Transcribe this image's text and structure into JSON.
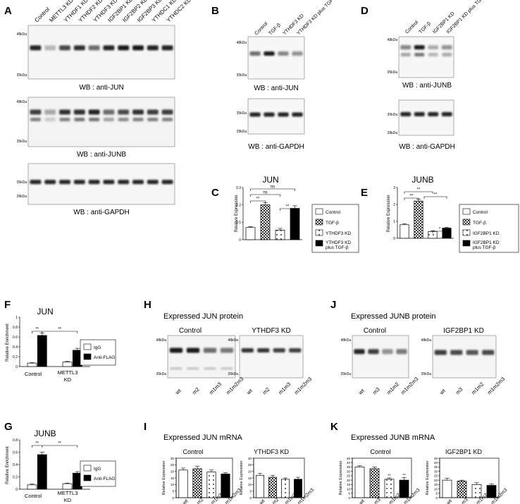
{
  "panels": {
    "A": {
      "letter": "A",
      "lanes": [
        "Control",
        "METTL3 KD",
        "YTHDF1 KD",
        "YTHDF2 KD",
        "YTHDF3 KD",
        "IGF2BP1 KD",
        "IGF2BP2 KD",
        "IGF2BP3 KD",
        "YTHDC1 KD",
        "YTHDC2 KD"
      ],
      "blots": [
        {
          "label": "WB : anti-JUN",
          "marker_top": "48kDa",
          "marker_bottom": "35kDa"
        },
        {
          "label": "WB : anti-JUNB",
          "marker_top": "48kDa",
          "marker_bottom": "35kDa"
        },
        {
          "label": "WB : anti-GAPDH",
          "marker_top": "35kDa",
          "marker_bottom": "28kDa"
        }
      ]
    },
    "B": {
      "letter": "B",
      "lanes": [
        "Control",
        "TGF-β",
        "YTHDF3 KD",
        "YTHDF3 KD plus TGF-β"
      ],
      "blots": [
        {
          "label": "WB : anti-JUN",
          "marker_top": "48kDa",
          "marker_bottom": "35kDa"
        },
        {
          "label": "WB : anti-GAPDH",
          "marker_top": "35kDa",
          "marker_bottom": "28kDa"
        }
      ]
    },
    "D": {
      "letter": "D",
      "lanes": [
        "Control",
        "TGF-β",
        "IGF2BP1 KD",
        "IGF2BP1 KD plus TGF-β"
      ],
      "blots": [
        {
          "label": "WB : anti-JUNB",
          "marker_top": "48kDa",
          "marker_bottom": "35kDa"
        },
        {
          "label": "WB : anti-GAPDH",
          "marker_top": "35kDa",
          "marker_bottom": "28kDa"
        }
      ]
    },
    "C": {
      "letter": "C",
      "chart_title": "JUN",
      "ylabel": "Relative Expression",
      "legend": [
        "Control",
        "TGF-β",
        "YTHDF3 KD",
        "YTHDF3 KD plus TGF-β"
      ],
      "sig": [
        "ns",
        "ns",
        "**",
        "**"
      ]
    },
    "E": {
      "letter": "E",
      "chart_title": "JUNB",
      "ylabel": "Relative Expression",
      "legend": [
        "Control",
        "TGF-β",
        "IGF2BP1 KD",
        "IGF2BP1 KD plus TGF-β"
      ],
      "sig": [
        "**",
        "**",
        "**",
        "*"
      ]
    },
    "F": {
      "letter": "F",
      "chart_title": "JUN",
      "ylabel": "Relative Enrichment",
      "groups": [
        "Control",
        "METTL3 KD"
      ],
      "legend": [
        "IgG",
        "Anti-FLAG"
      ],
      "sig": [
        "**",
        "**"
      ]
    },
    "G": {
      "letter": "G",
      "chart_title": "JUNB",
      "ylabel": "Relative Enrichment",
      "groups": [
        "Control",
        "METTL3 KD"
      ],
      "legend": [
        "IgG",
        "Anti-FLAG"
      ],
      "sig": [
        "**",
        "**"
      ]
    },
    "H": {
      "letter": "H",
      "heading": "Expressed JUN protein",
      "sub": [
        "Control",
        "YTHDF3 KD"
      ],
      "lanes": [
        "wt",
        "m2",
        "m1m3",
        "m1m2m3"
      ],
      "marker_top": "48kDa",
      "marker_bottom": "35kDa"
    },
    "J": {
      "letter": "J",
      "heading": "Expressed JUNB protein",
      "sub": [
        "Control",
        "IGF2BP1 KD"
      ],
      "lanes": [
        "wt",
        "m3",
        "m1m2",
        "m1m2m3"
      ],
      "marker_top": "48kDa",
      "marker_bottom": "35kDa"
    },
    "I": {
      "letter": "I",
      "heading": "Expressed JUN mRNA",
      "sub": [
        "Control",
        "YTHDF3 KD"
      ],
      "ylabel": "Relative Expression",
      "lanes": [
        "wt",
        "m2",
        "m1m3",
        "m1m2m3"
      ]
    },
    "K": {
      "letter": "K",
      "heading": "Expressed JUNB mRNA",
      "sub": [
        "Control",
        "IGF2BP1 KD"
      ],
      "ylabel": "Relative Expression",
      "lanes": [
        "wt",
        "m3",
        "m1m2",
        "m1m2m3"
      ],
      "sig": [
        "**",
        "**"
      ]
    }
  },
  "chart_data": [
    {
      "id": "C",
      "type": "bar",
      "categories": [
        "Control",
        "TGF-β",
        "YTHDF3 KD",
        "YTHDF3 KD plus TGF-β"
      ],
      "values": [
        0.07,
        0.2,
        0.055,
        0.18
      ],
      "errors": [
        0.005,
        0.012,
        0.01,
        0.015
      ],
      "ylim": [
        0,
        0.3
      ],
      "yticks": [
        0,
        0.1,
        0.2,
        0.3
      ],
      "title": "JUN",
      "ylabel": "Relative Expression"
    },
    {
      "id": "E",
      "type": "bar",
      "categories": [
        "Control",
        "TGF-β",
        "IGF2BP1 KD",
        "IGF2BP1 KD plus TGF-β"
      ],
      "values": [
        0.8,
        2.2,
        0.4,
        0.6
      ],
      "errors": [
        0.05,
        0.12,
        0.05,
        0.05
      ],
      "ylim": [
        0,
        3
      ],
      "yticks": [
        0,
        1,
        2,
        3
      ],
      "title": "JUNB",
      "ylabel": "Relative Expression"
    },
    {
      "id": "F",
      "type": "bar",
      "categories": [
        "Control",
        "METTL3 KD"
      ],
      "series": [
        {
          "name": "IgG",
          "values": [
            0.07,
            0.09
          ],
          "errors": [
            0.01,
            0.015
          ]
        },
        {
          "name": "Anti-FLAG",
          "values": [
            0.63,
            0.33
          ],
          "errors": [
            0.05,
            0.04
          ]
        }
      ],
      "ylim": [
        0,
        1.0
      ],
      "yticks": [
        0,
        0.2,
        0.4,
        0.6,
        0.8,
        1.0
      ],
      "title": "JUN",
      "ylabel": "Relative Enrichment"
    },
    {
      "id": "G",
      "type": "bar",
      "categories": [
        "Control",
        "METTL3 KD"
      ],
      "series": [
        {
          "name": "IgG",
          "values": [
            0.07,
            0.09
          ],
          "errors": [
            0.015,
            0.01
          ]
        },
        {
          "name": "Anti-FLAG",
          "values": [
            0.56,
            0.26
          ],
          "errors": [
            0.04,
            0.025
          ]
        }
      ],
      "ylim": [
        0,
        0.8
      ],
      "yticks": [
        0,
        0.2,
        0.4,
        0.6,
        0.8
      ],
      "title": "JUNB",
      "ylabel": "Relative Enrichment"
    },
    {
      "id": "I-Control",
      "type": "bar",
      "categories": [
        "wt",
        "m2",
        "m1m3",
        "m1m2m3"
      ],
      "values": [
        21,
        22,
        19.5,
        18
      ],
      "errors": [
        1.5,
        2,
        1.5,
        1
      ],
      "ylim": [
        0,
        30
      ],
      "yticks": [
        0,
        5,
        10,
        15,
        20,
        25,
        30
      ],
      "ylabel": "Relative Expression"
    },
    {
      "id": "I-YTHDF3 KD",
      "type": "bar",
      "categories": [
        "wt",
        "m2",
        "m1m3",
        "m1m2m3"
      ],
      "values": [
        17,
        15.5,
        14,
        14
      ],
      "errors": [
        1.5,
        1.5,
        1,
        1.5
      ],
      "ylim": [
        0,
        30
      ],
      "yticks": [
        0,
        5,
        10,
        15,
        20,
        25,
        30
      ],
      "ylabel": "Relative Expression"
    },
    {
      "id": "K-Control",
      "type": "bar",
      "categories": [
        "wt",
        "m3",
        "m1m2",
        "m1m2m3"
      ],
      "values": [
        35,
        33,
        21,
        20
      ],
      "errors": [
        1.5,
        2,
        1.5,
        3
      ],
      "ylim": [
        0,
        45
      ],
      "yticks": [
        0,
        5,
        10,
        15,
        20,
        25,
        30,
        35,
        40,
        45
      ],
      "ylabel": "Relative Expression"
    },
    {
      "id": "K-IGF2BP1 KD",
      "type": "bar",
      "categories": [
        "wt",
        "m3",
        "m1m2",
        "m1m2m3"
      ],
      "values": [
        20,
        19,
        15,
        14
      ],
      "errors": [
        2,
        1,
        2,
        1.5
      ],
      "ylim": [
        0,
        45
      ],
      "yticks": [
        0,
        5,
        10,
        15,
        20,
        25,
        30,
        35,
        40,
        45
      ],
      "ylabel": "Relative Expression"
    }
  ]
}
